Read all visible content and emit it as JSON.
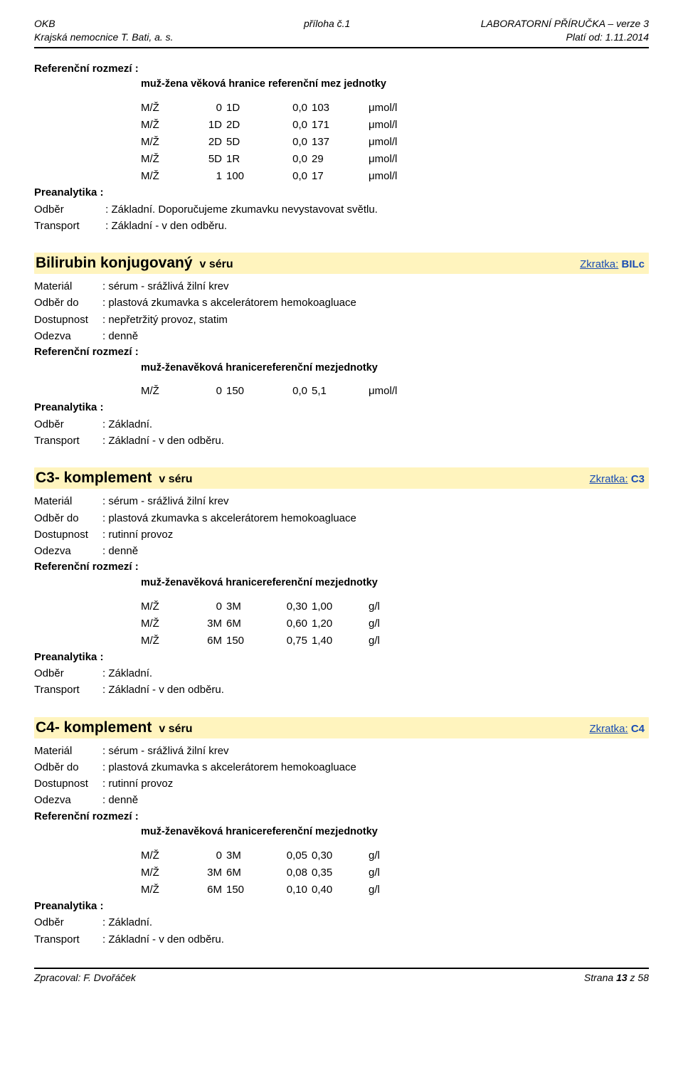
{
  "header": {
    "left_line1": "OKB",
    "left_line2": "Krajská nemocnice T. Bati, a. s.",
    "center": "příloha č.1",
    "right_line1": "LABORATORNÍ PŘÍRUČKA – verze 3",
    "right_line2": "Platí od: 1.11.2014"
  },
  "top_block": {
    "ref_label": "Referenční rozmezí :",
    "hdr_sex": "muž-žena",
    "hdr_age": "věková hranice",
    "hdr_ref": "referenční mez",
    "hdr_unit": "jednotky",
    "rows": [
      {
        "sex": "M/Ž",
        "from": "0",
        "to": "1D",
        "low": "0,0",
        "high": "103",
        "unit": "μmol/l"
      },
      {
        "sex": "M/Ž",
        "from": "1D",
        "to": "2D",
        "low": "0,0",
        "high": "171",
        "unit": "μmol/l"
      },
      {
        "sex": "M/Ž",
        "from": "2D",
        "to": "5D",
        "low": "0,0",
        "high": "137",
        "unit": "μmol/l"
      },
      {
        "sex": "M/Ž",
        "from": "5D",
        "to": "1R",
        "low": "0,0",
        "high": "29",
        "unit": "μmol/l"
      },
      {
        "sex": "M/Ž",
        "from": "1",
        "to": "100",
        "low": "0,0",
        "high": "17",
        "unit": "μmol/l"
      }
    ],
    "prean_label": "Preanalytika :",
    "odber_label": "Odběr",
    "odber_value": ": Základní. Doporučujeme zkumavku nevystavovat světlu.",
    "transport_label": "Transport",
    "transport_value": ": Základní - v den odběru."
  },
  "sections": [
    {
      "title": "Bilirubin konjugovaný",
      "where": "v séru",
      "zkratka_label": "Zkratka:",
      "zkratka": "BILc",
      "lines": {
        "material_label": "Materiál",
        "material_value": ": sérum  -  srážlivá žilní krev",
        "odberdo_label": "Odběr do",
        "odberdo_value": ": plastová zkumavka s akcelerátorem hemokoagluace",
        "dostup_label": "Dostupnost",
        "dostup_value": ": nepřetržitý provoz, statim",
        "odezva_label": "Odezva",
        "odezva_value": ": denně",
        "ref_label": "Referenční rozmezí :"
      },
      "hdr": {
        "sex": "muž-žena",
        "age": "věková hranice",
        "ref": "referenční mez",
        "unit": "jednotky"
      },
      "rows": [
        {
          "sex": "M/Ž",
          "from": "0",
          "to": "150",
          "low": "0,0",
          "high": "5,1",
          "unit": "μmol/l"
        }
      ],
      "prean_label": "Preanalytika :",
      "odber_label": "Odběr",
      "odber_value": ": Základní.",
      "transport_label": "Transport",
      "transport_value": ": Základní - v den odběru."
    },
    {
      "title": "C3- komplement",
      "where": "v séru",
      "zkratka_label": "Zkratka:",
      "zkratka": "C3",
      "lines": {
        "material_label": "Materiál",
        "material_value": ": sérum  -  srážlivá žilní krev",
        "odberdo_label": "Odběr do",
        "odberdo_value": ": plastová zkumavka s akcelerátorem hemokoagluace",
        "dostup_label": "Dostupnost",
        "dostup_value": ": rutinní provoz",
        "odezva_label": "Odezva",
        "odezva_value": ": denně",
        "ref_label": "Referenční rozmezí :"
      },
      "hdr": {
        "sex": "muž-žena",
        "age": "věková hranice",
        "ref": "referenční mez",
        "unit": "jednotky"
      },
      "rows": [
        {
          "sex": "M/Ž",
          "from": "0",
          "to": "3M",
          "low": "0,30",
          "high": "1,00",
          "unit": "g/l"
        },
        {
          "sex": "M/Ž",
          "from": "3M",
          "to": "6M",
          "low": "0,60",
          "high": "1,20",
          "unit": "g/l"
        },
        {
          "sex": "M/Ž",
          "from": "6M",
          "to": "150",
          "low": "0,75",
          "high": "1,40",
          "unit": "g/l"
        }
      ],
      "prean_label": "Preanalytika :",
      "odber_label": "Odběr",
      "odber_value": ": Základní.",
      "transport_label": "Transport",
      "transport_value": ": Základní - v den odběru."
    },
    {
      "title": "C4- komplement",
      "where": "v séru",
      "zkratka_label": "Zkratka:",
      "zkratka": "C4",
      "lines": {
        "material_label": "Materiál",
        "material_value": ": sérum  -  srážlivá žilní krev",
        "odberdo_label": "Odběr do",
        "odberdo_value": ": plastová zkumavka s akcelerátorem hemokoagluace",
        "dostup_label": "Dostupnost",
        "dostup_value": ": rutinní provoz",
        "odezva_label": "Odezva",
        "odezva_value": ": denně",
        "ref_label": "Referenční rozmezí :"
      },
      "hdr": {
        "sex": "muž-žena",
        "age": "věková hranice",
        "ref": "referenční mez",
        "unit": "jednotky"
      },
      "rows": [
        {
          "sex": "M/Ž",
          "from": "0",
          "to": "3M",
          "low": "0,05",
          "high": "0,30",
          "unit": "g/l"
        },
        {
          "sex": "M/Ž",
          "from": "3M",
          "to": "6M",
          "low": "0,08",
          "high": "0,35",
          "unit": "g/l"
        },
        {
          "sex": "M/Ž",
          "from": "6M",
          "to": "150",
          "low": "0,10",
          "high": "0,40",
          "unit": "g/l"
        }
      ],
      "prean_label": "Preanalytika :",
      "odber_label": "Odběr",
      "odber_value": ": Základní.",
      "transport_label": "Transport",
      "transport_value": ": Základní - v den odběru."
    }
  ],
  "footer": {
    "left": "Zpracoval: F. Dvořáček",
    "right": "Strana 13 z 58",
    "page_bold": "13"
  },
  "style": {
    "title_bg": "#fff4be",
    "link_color": "#1a4db3"
  }
}
